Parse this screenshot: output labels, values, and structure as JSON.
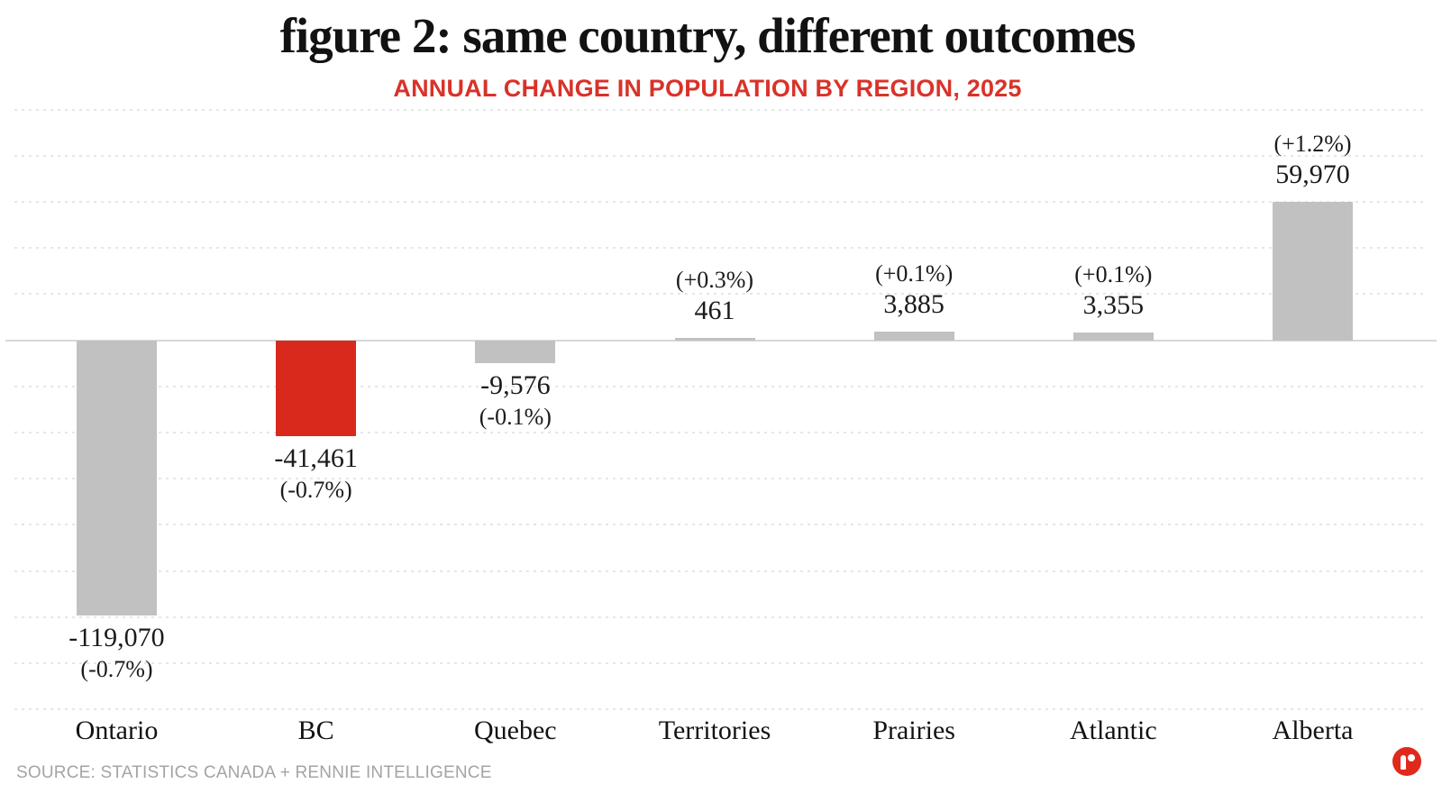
{
  "title": "figure 2: same country, different outcomes",
  "subtitle": "ANNUAL CHANGE IN POPULATION BY REGION, 2025",
  "source_note": "SOURCE: STATISTICS CANADA + RENNIE INTELLIGENCE",
  "logo_name": "rennie-logo",
  "colors": {
    "bar_gray": "#c1c1c1",
    "highlight_red": "#d9291c",
    "subtitle_red": "#d93229",
    "logo_red": "#e0291d",
    "grid_gray": "#e6e6e6",
    "zero_line_gray": "#d8d8d8",
    "text_black": "#1b1b1b",
    "source_gray": "#a4a4a4"
  },
  "chart_data": {
    "type": "bar",
    "title": "figure 2: same country, different outcomes",
    "subtitle": "ANNUAL CHANGE IN POPULATION BY REGION, 2025",
    "categories": [
      "Ontario",
      "BC",
      "Quebec",
      "Territories",
      "Prairies",
      "Atlantic",
      "Alberta"
    ],
    "values": [
      -119070,
      -41461,
      -9576,
      461,
      3885,
      3355,
      59970
    ],
    "value_labels": [
      "-119,070",
      "-41,461",
      "-9,576",
      "461",
      "3,885",
      "3,355",
      "59,970"
    ],
    "pct_labels": [
      "(-0.7%)",
      "(-0.7%)",
      "(-0.1%)",
      "(+0.3%)",
      "(+0.1%)",
      "(+0.1%)",
      "(+1.2%)"
    ],
    "highlight_category": "BC",
    "xlabel": "",
    "ylabel": "",
    "ylim": [
      -160000,
      100000
    ],
    "gridline_interval": 20000,
    "grid": "dashed horizontal, no axis tick labels",
    "legend": "none",
    "baseline": 0
  }
}
